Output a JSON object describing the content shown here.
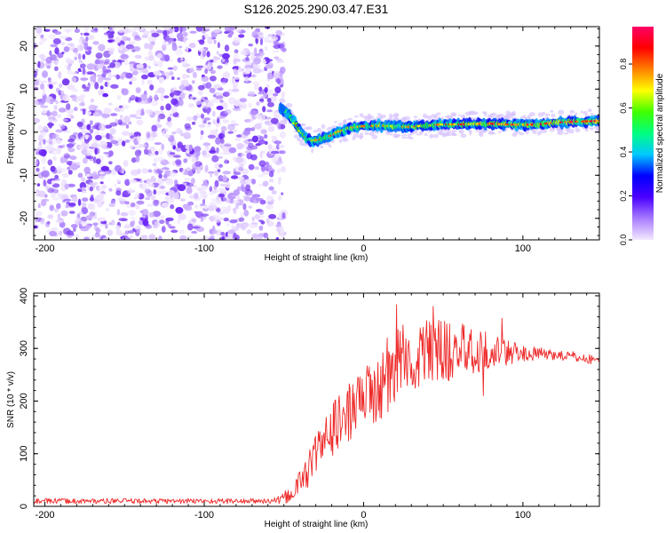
{
  "figure_title": "S126.2025.290.03.47.E31",
  "chart_data": [
    {
      "type": "heatmap",
      "panel": "spectrogram",
      "xlabel": "Height of straight line (km)",
      "ylabel": "Frequency (Hz)",
      "xlim": [
        -207,
        148
      ],
      "ylim": [
        -25,
        24.5
      ],
      "xticks": [
        -200,
        -100,
        0,
        100
      ],
      "yticks": [
        -20,
        -10,
        0,
        10,
        20
      ],
      "noise_region_x": [
        -207,
        -52
      ],
      "ridge": {
        "x": [
          -52,
          -48,
          -44,
          -40,
          -36,
          -32,
          -28,
          -24,
          -20,
          -16,
          -12,
          -8,
          -4,
          0,
          10,
          20,
          30,
          40,
          50,
          60,
          70,
          80,
          90,
          100,
          110,
          120,
          130,
          140,
          148
        ],
        "freq": [
          5.5,
          4.5,
          2.5,
          0.5,
          -1.5,
          -2.0,
          -1.8,
          -1.2,
          -0.8,
          0.0,
          0.5,
          1.0,
          1.2,
          1.4,
          1.5,
          1.4,
          1.2,
          1.6,
          1.8,
          1.8,
          1.9,
          2.0,
          1.8,
          1.7,
          1.8,
          2.2,
          2.4,
          2.5,
          2.6
        ]
      },
      "colorbar": {
        "label": "Normalized spectral amplitude",
        "range": [
          0,
          0.97
        ],
        "ticks": [
          "0.0",
          "0.2",
          "0.4",
          "0.6",
          "0.8"
        ],
        "tick_values": [
          0.0,
          0.2,
          0.4,
          0.6,
          0.8
        ],
        "colors": [
          "#f3e8ff",
          "#a87cff",
          "#4b00ff",
          "#0000ff",
          "#00c8ff",
          "#00ff80",
          "#40ff00",
          "#ffff00",
          "#ff8000",
          "#ff0000",
          "#ff0066"
        ]
      }
    },
    {
      "type": "line",
      "panel": "snr",
      "xlabel": "Height of straight line (km)",
      "ylabel": "SNR (10 * v/v)",
      "xlim": [
        -207,
        148
      ],
      "ylim": [
        0,
        405
      ],
      "xticks": [
        -200,
        -100,
        0,
        100
      ],
      "yticks": [
        0,
        100,
        200,
        300,
        400
      ],
      "series": [
        {
          "name": "SNR",
          "color": "#ee2a2a",
          "envelope": {
            "x": [
              -207,
              -60,
              -52,
              -45,
              -40,
              -35,
              -30,
              -25,
              -20,
              -15,
              -10,
              -5,
              0,
              5,
              10,
              15,
              20,
              25,
              30,
              40,
              50,
              60,
              70,
              80,
              90,
              100,
              110,
              120,
              130,
              140,
              148
            ],
            "mean": [
              10,
              10,
              12,
              25,
              45,
              70,
              100,
              120,
              145,
              160,
              175,
              190,
              200,
              215,
              225,
              245,
              265,
              275,
              280,
              290,
              295,
              298,
              298,
              295,
              293,
              290,
              290,
              288,
              285,
              280,
              278
            ],
            "spread": [
              5,
              5,
              8,
              18,
              25,
              35,
              40,
              45,
              50,
              55,
              55,
              60,
              60,
              65,
              65,
              70,
              75,
              75,
              70,
              65,
              60,
              55,
              45,
              35,
              25,
              15,
              12,
              10,
              10,
              10,
              8
            ]
          }
        }
      ]
    }
  ]
}
